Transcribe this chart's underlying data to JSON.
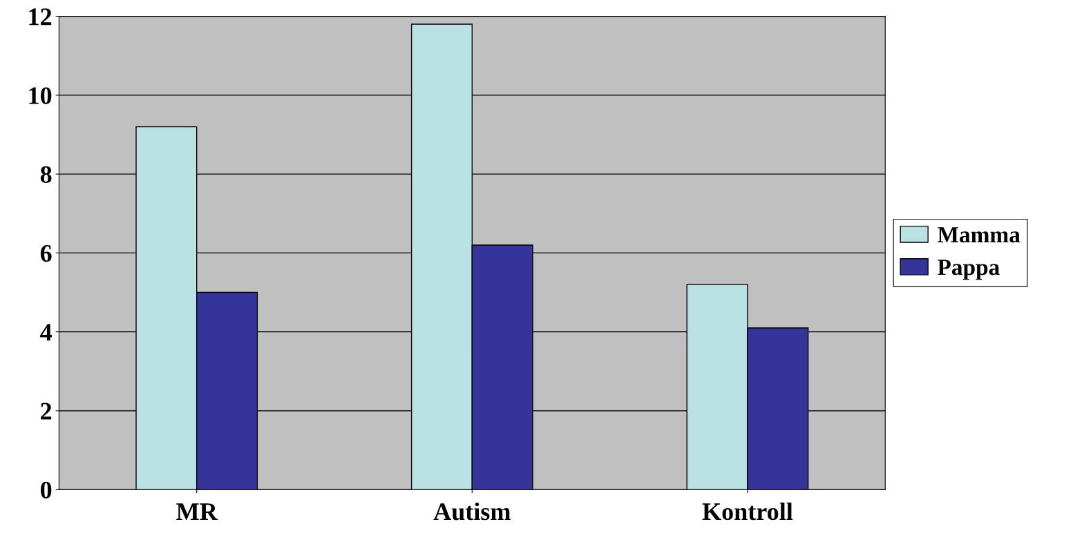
{
  "chart_data": {
    "type": "bar",
    "categories": [
      "MR",
      "Autism",
      "Kontroll"
    ],
    "series": [
      {
        "name": "Mamma",
        "color": "#b9e0e3",
        "values": [
          9.2,
          11.8,
          5.2
        ]
      },
      {
        "name": "Pappa",
        "color": "#353599",
        "values": [
          5.0,
          6.2,
          4.1
        ]
      }
    ],
    "ylim": [
      0,
      12
    ],
    "yticks": [
      0,
      2,
      4,
      6,
      8,
      10,
      12
    ],
    "grid": "y",
    "legend": "right"
  }
}
